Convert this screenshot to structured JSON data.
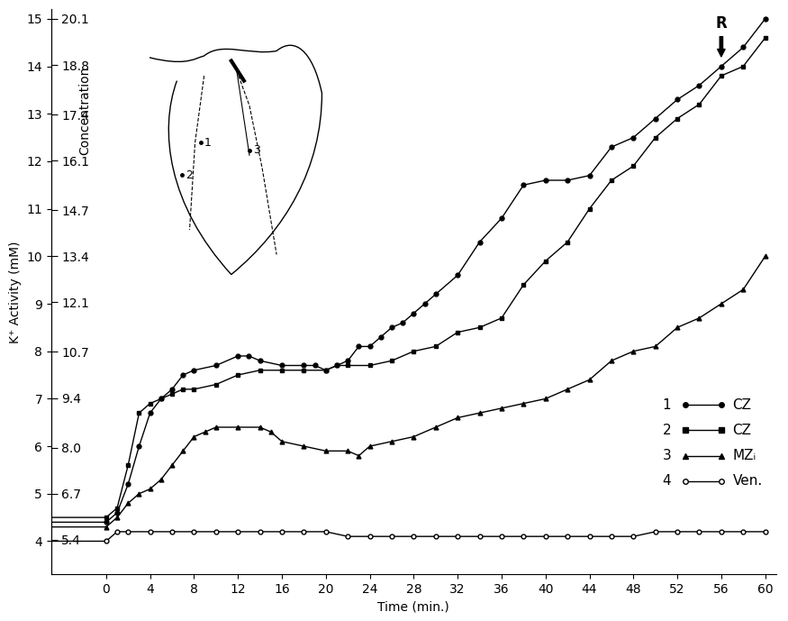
{
  "chart_data": {
    "type": "line",
    "x_label": "Time (min.)",
    "y_label": "K⁺ Activity (mM)",
    "y2_label": "Concentration",
    "xlim": [
      -5,
      61
    ],
    "xticks": [
      0,
      4,
      8,
      12,
      16,
      20,
      24,
      28,
      32,
      36,
      40,
      44,
      48,
      52,
      56,
      60
    ],
    "ylim": [
      3.3,
      15.2
    ],
    "yticks": [
      4,
      5,
      6,
      7,
      8,
      9,
      10,
      11,
      12,
      13,
      14,
      15
    ],
    "y2lim": [
      4.42,
      20.37
    ],
    "y2ticks": [
      5.4,
      6.7,
      8.0,
      9.4,
      10.7,
      12.1,
      13.4,
      14.7,
      16.1,
      17.4,
      18.8,
      20.1
    ],
    "annotations": [
      {
        "text": "R",
        "x": 56,
        "y": 14.15
      }
    ],
    "inset_labels": [
      "1",
      "2",
      "3"
    ],
    "series": [
      {
        "label": "1",
        "name": "CZ",
        "color": "#000000",
        "marker": "circle",
        "line_style": "solid",
        "x": [
          -5,
          0,
          1,
          2,
          3,
          4,
          5,
          6,
          7,
          8,
          10,
          12,
          13,
          14,
          16,
          18,
          19,
          20,
          21,
          22,
          23,
          24,
          25,
          26,
          27,
          28,
          29,
          30,
          32,
          34,
          36,
          38,
          40,
          42,
          44,
          46,
          48,
          50,
          52,
          54,
          56,
          58,
          60
        ],
        "values": [
          4.4,
          4.4,
          4.6,
          5.2,
          6.0,
          6.7,
          7.0,
          7.2,
          7.5,
          7.6,
          7.7,
          7.9,
          7.9,
          7.8,
          7.7,
          7.7,
          7.7,
          7.6,
          7.7,
          7.8,
          8.1,
          8.1,
          8.3,
          8.5,
          8.6,
          8.8,
          9.0,
          9.2,
          9.6,
          10.3,
          10.8,
          11.5,
          11.6,
          11.6,
          11.7,
          12.3,
          12.5,
          12.9,
          13.3,
          13.6,
          14.0,
          14.4,
          15.0
        ]
      },
      {
        "label": "2",
        "name": "CZ",
        "color": "#000000",
        "marker": "square",
        "line_style": "solid",
        "x": [
          -5,
          0,
          1,
          2,
          3,
          4,
          5,
          6,
          7,
          8,
          10,
          12,
          14,
          16,
          18,
          20,
          21,
          22,
          24,
          26,
          28,
          30,
          32,
          34,
          36,
          38,
          40,
          42,
          44,
          46,
          48,
          50,
          52,
          54,
          56,
          58,
          60
        ],
        "values": [
          4.5,
          4.5,
          4.7,
          5.6,
          6.7,
          6.9,
          7.0,
          7.1,
          7.2,
          7.2,
          7.3,
          7.5,
          7.6,
          7.6,
          7.6,
          7.6,
          7.7,
          7.7,
          7.7,
          7.8,
          8.0,
          8.1,
          8.4,
          8.5,
          8.7,
          9.4,
          9.9,
          10.3,
          11.0,
          11.6,
          11.9,
          12.5,
          12.9,
          13.2,
          13.8,
          14.0,
          14.6
        ]
      },
      {
        "label": "3",
        "name": "MZᵢ",
        "color": "#000000",
        "marker": "triangle",
        "line_style": "solid",
        "x": [
          -5,
          0,
          1,
          2,
          3,
          4,
          5,
          6,
          7,
          8,
          9,
          10,
          12,
          14,
          15,
          16,
          18,
          20,
          22,
          23,
          24,
          26,
          28,
          30,
          32,
          34,
          36,
          38,
          40,
          42,
          44,
          46,
          48,
          50,
          52,
          54,
          56,
          58,
          60
        ],
        "values": [
          4.3,
          4.3,
          4.5,
          4.8,
          5.0,
          5.1,
          5.3,
          5.6,
          5.9,
          6.2,
          6.3,
          6.4,
          6.4,
          6.4,
          6.3,
          6.1,
          6.0,
          5.9,
          5.9,
          5.8,
          6.0,
          6.1,
          6.2,
          6.4,
          6.6,
          6.7,
          6.8,
          6.9,
          7.0,
          7.2,
          7.4,
          7.8,
          8.0,
          8.1,
          8.5,
          8.7,
          9.0,
          9.3,
          10.0
        ]
      },
      {
        "label": "4",
        "name": "Ven.",
        "color": "#000000",
        "marker": "open_circle",
        "line_style": "solid",
        "x": [
          -5,
          0,
          1,
          2,
          4,
          6,
          8,
          10,
          12,
          14,
          16,
          18,
          20,
          22,
          24,
          26,
          28,
          30,
          32,
          34,
          36,
          38,
          40,
          42,
          44,
          46,
          48,
          50,
          52,
          54,
          56,
          58,
          60
        ],
        "values": [
          4.0,
          4.0,
          4.2,
          4.2,
          4.2,
          4.2,
          4.2,
          4.2,
          4.2,
          4.2,
          4.2,
          4.2,
          4.2,
          4.1,
          4.1,
          4.1,
          4.1,
          4.1,
          4.1,
          4.1,
          4.1,
          4.1,
          4.1,
          4.1,
          4.1,
          4.1,
          4.1,
          4.2,
          4.2,
          4.2,
          4.2,
          4.2,
          4.2
        ]
      }
    ]
  }
}
